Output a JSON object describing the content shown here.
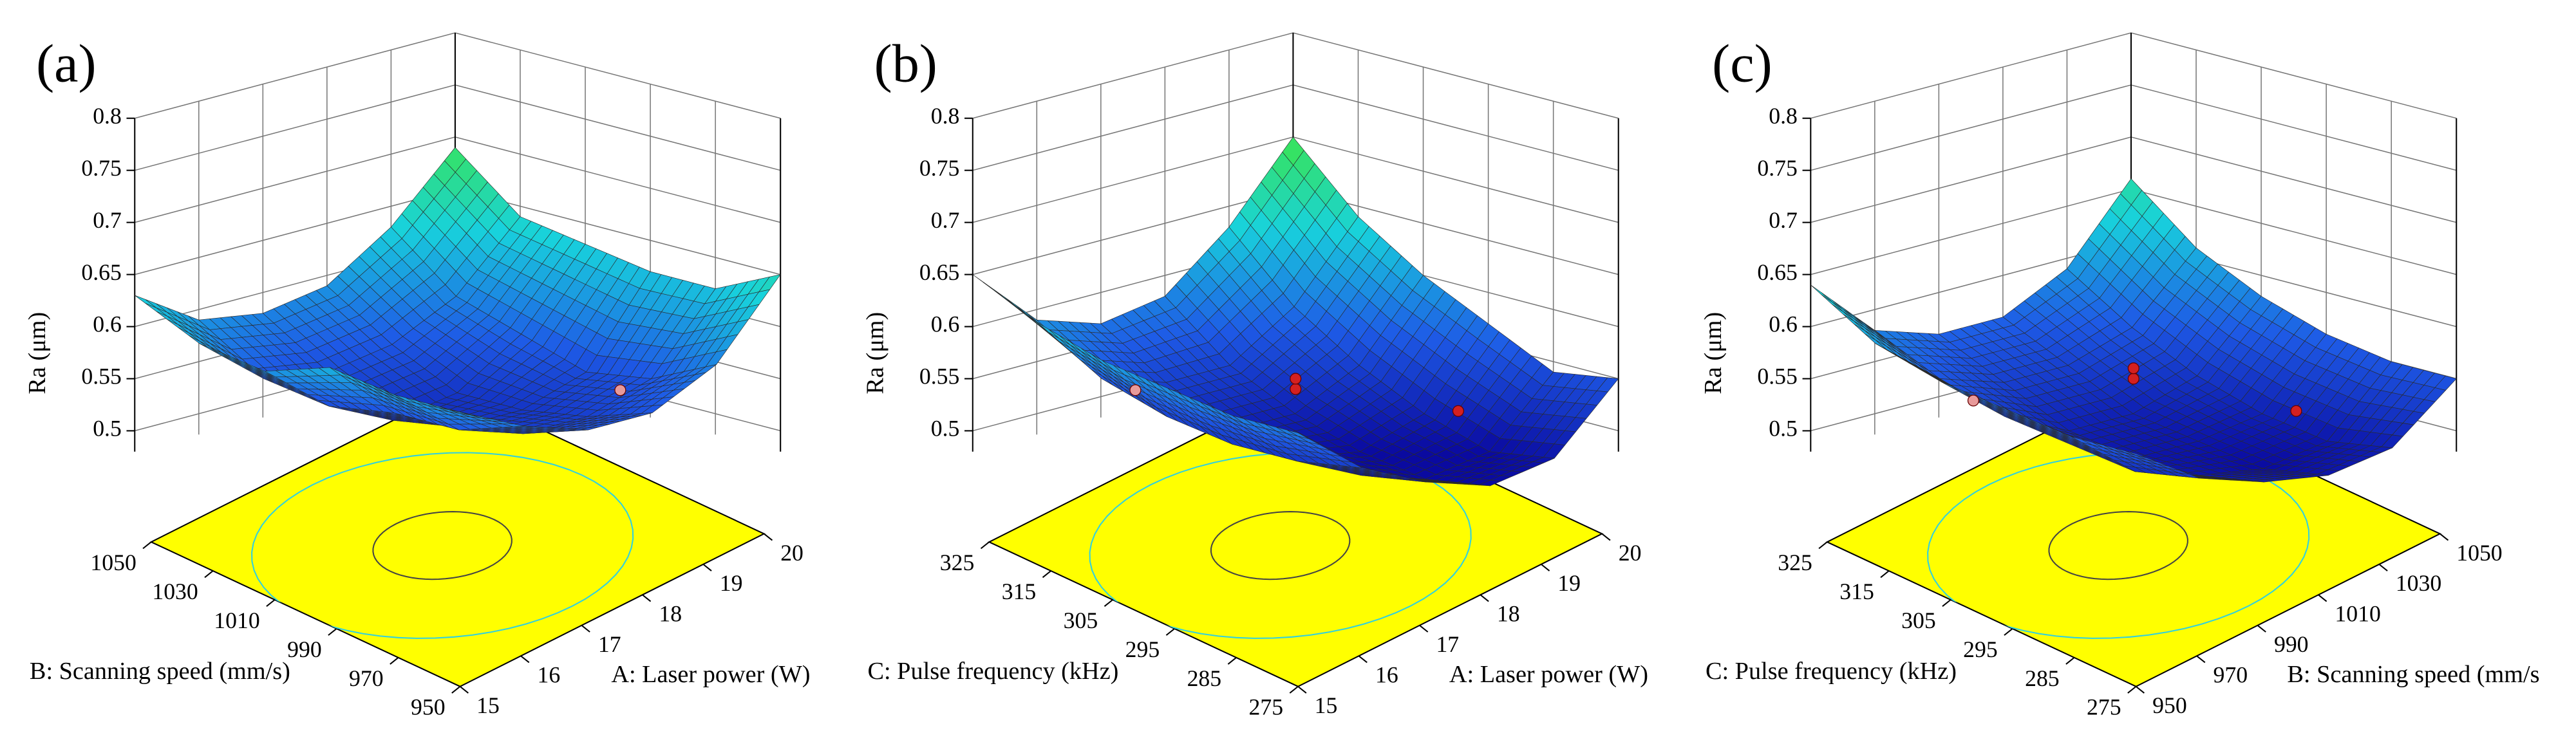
{
  "chart_data": [
    {
      "type": "surface",
      "title": "(a)",
      "z_label": "Ra (μm)",
      "x_label": "A: Laser power (W)",
      "y_label": "B: Scanning speed (mm/s)",
      "xlim": [
        15,
        20
      ],
      "xticks": [
        15,
        16,
        17,
        18,
        19,
        20
      ],
      "ylim": [
        950,
        1050
      ],
      "yticks": [
        950,
        970,
        990,
        1010,
        1030,
        1050
      ],
      "zlim": [
        0.48,
        0.8
      ],
      "zticks": [
        0.5,
        0.55,
        0.6,
        0.65,
        0.7,
        0.75,
        0.8
      ],
      "x": [
        15,
        16,
        17,
        18,
        19,
        20
      ],
      "y": [
        950,
        970,
        990,
        1010,
        1030,
        1050
      ],
      "z": [
        [
          0.6,
          0.57,
          0.55,
          0.55,
          0.58,
          0.65
        ],
        [
          0.6,
          0.55,
          0.53,
          0.53,
          0.55,
          0.62
        ],
        [
          0.61,
          0.55,
          0.52,
          0.52,
          0.54,
          0.62
        ],
        [
          0.59,
          0.54,
          0.51,
          0.52,
          0.56,
          0.63
        ],
        [
          0.6,
          0.55,
          0.54,
          0.55,
          0.58,
          0.64
        ],
        [
          0.63,
          0.59,
          0.58,
          0.59,
          0.63,
          0.69
        ]
      ],
      "points": [
        {
          "x": 17.5,
          "y": 950,
          "z": 0.58,
          "color": "#e89a9a"
        }
      ],
      "colormap": [
        "#0a0aa0",
        "#1e5ae6",
        "#18d2dc",
        "#3ce646"
      ],
      "floor_color": "#ffff00"
    },
    {
      "type": "surface",
      "title": "(b)",
      "z_label": "Ra (μm)",
      "x_label": "A: Laser power (W)",
      "y_label": "C: Pulse frequency (kHz)",
      "xlim": [
        15,
        20
      ],
      "xticks": [
        15,
        16,
        17,
        18,
        19,
        20
      ],
      "ylim": [
        275,
        325
      ],
      "yticks": [
        275,
        285,
        295,
        305,
        315,
        325
      ],
      "zlim": [
        0.48,
        0.8
      ],
      "zticks": [
        0.5,
        0.55,
        0.6,
        0.65,
        0.7,
        0.75,
        0.8
      ],
      "x": [
        15,
        16,
        17,
        18,
        19,
        20
      ],
      "y": [
        275,
        285,
        295,
        305,
        315,
        325
      ],
      "z": [
        [
          0.58,
          0.53,
          0.5,
          0.48,
          0.49,
          0.55
        ],
        [
          0.58,
          0.52,
          0.49,
          0.47,
          0.48,
          0.54
        ],
        [
          0.59,
          0.52,
          0.49,
          0.48,
          0.5,
          0.57
        ],
        [
          0.6,
          0.53,
          0.5,
          0.5,
          0.53,
          0.6
        ],
        [
          0.62,
          0.55,
          0.53,
          0.53,
          0.57,
          0.64
        ],
        [
          0.65,
          0.59,
          0.57,
          0.58,
          0.63,
          0.7
        ]
      ],
      "points": [
        {
          "x": 17.5,
          "y": 300,
          "z": 0.54,
          "color": "#d42020"
        },
        {
          "x": 17.5,
          "y": 300,
          "z": 0.55,
          "color": "#d42020"
        },
        {
          "x": 17.5,
          "y": 275,
          "z": 0.56,
          "color": "#d42020"
        },
        {
          "x": 15,
          "y": 300,
          "z": 0.58,
          "color": "#e89a9a"
        }
      ],
      "colormap": [
        "#0a0aa0",
        "#1e5ae6",
        "#18d2dc",
        "#3ce646"
      ],
      "floor_color": "#ffff00"
    },
    {
      "type": "surface",
      "title": "(c)",
      "z_label": "Ra (μm)",
      "x_label": "B: Scanning speed (mm/s",
      "y_label": "C: Pulse frequency (kHz)",
      "xlim": [
        950,
        1050
      ],
      "xticks": [
        950,
        970,
        990,
        1010,
        1030,
        1050
      ],
      "ylim": [
        275,
        325
      ],
      "yticks": [
        275,
        285,
        295,
        305,
        315,
        325
      ],
      "zlim": [
        0.48,
        0.8
      ],
      "zticks": [
        0.5,
        0.55,
        0.6,
        0.65,
        0.7,
        0.75,
        0.8
      ],
      "x": [
        950,
        970,
        990,
        1010,
        1030,
        1050
      ],
      "y": [
        275,
        285,
        295,
        305,
        315,
        325
      ],
      "z": [
        [
          0.56,
          0.52,
          0.5,
          0.49,
          0.5,
          0.55
        ],
        [
          0.56,
          0.51,
          0.49,
          0.48,
          0.49,
          0.55
        ],
        [
          0.57,
          0.52,
          0.49,
          0.49,
          0.5,
          0.56
        ],
        [
          0.58,
          0.53,
          0.5,
          0.5,
          0.52,
          0.58
        ],
        [
          0.6,
          0.55,
          0.53,
          0.53,
          0.55,
          0.61
        ],
        [
          0.64,
          0.58,
          0.56,
          0.56,
          0.59,
          0.66
        ]
      ],
      "points": [
        {
          "x": 1000,
          "y": 300,
          "z": 0.55,
          "color": "#d42020"
        },
        {
          "x": 1000,
          "y": 300,
          "z": 0.56,
          "color": "#d42020"
        },
        {
          "x": 1000,
          "y": 275,
          "z": 0.56,
          "color": "#d42020"
        },
        {
          "x": 950,
          "y": 300,
          "z": 0.57,
          "color": "#e89a9a"
        }
      ],
      "colormap": [
        "#0a0aa0",
        "#1e5ae6",
        "#18d2dc",
        "#3ce646"
      ],
      "floor_color": "#ffff00"
    }
  ]
}
